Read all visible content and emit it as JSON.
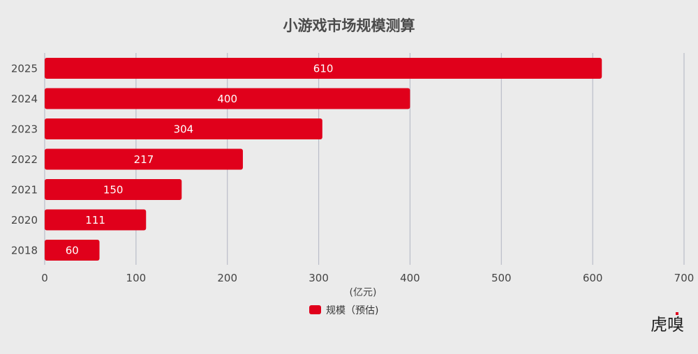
{
  "chart_data": {
    "type": "bar",
    "orientation": "horizontal",
    "title": "小游戏市场规模测算",
    "categories": [
      "2025",
      "2024",
      "2023",
      "2022",
      "2021",
      "2020",
      "2018"
    ],
    "series": [
      {
        "name": "规模（预估)",
        "values": [
          610,
          400,
          304,
          217,
          150,
          111,
          60
        ],
        "color": "#e0001b"
      }
    ],
    "xlim": [
      0,
      700
    ],
    "xticks": [
      0,
      100,
      200,
      300,
      400,
      500,
      600,
      700
    ],
    "xlabel": "(亿元)",
    "grid": "vertical",
    "legend_position": "bottom-center",
    "data_labels": true
  },
  "brand": {
    "logo_text": "虎嗅"
  },
  "colors": {
    "background": "#ebebeb",
    "bar": "#e0001b",
    "grid": "#b9bcc8"
  }
}
